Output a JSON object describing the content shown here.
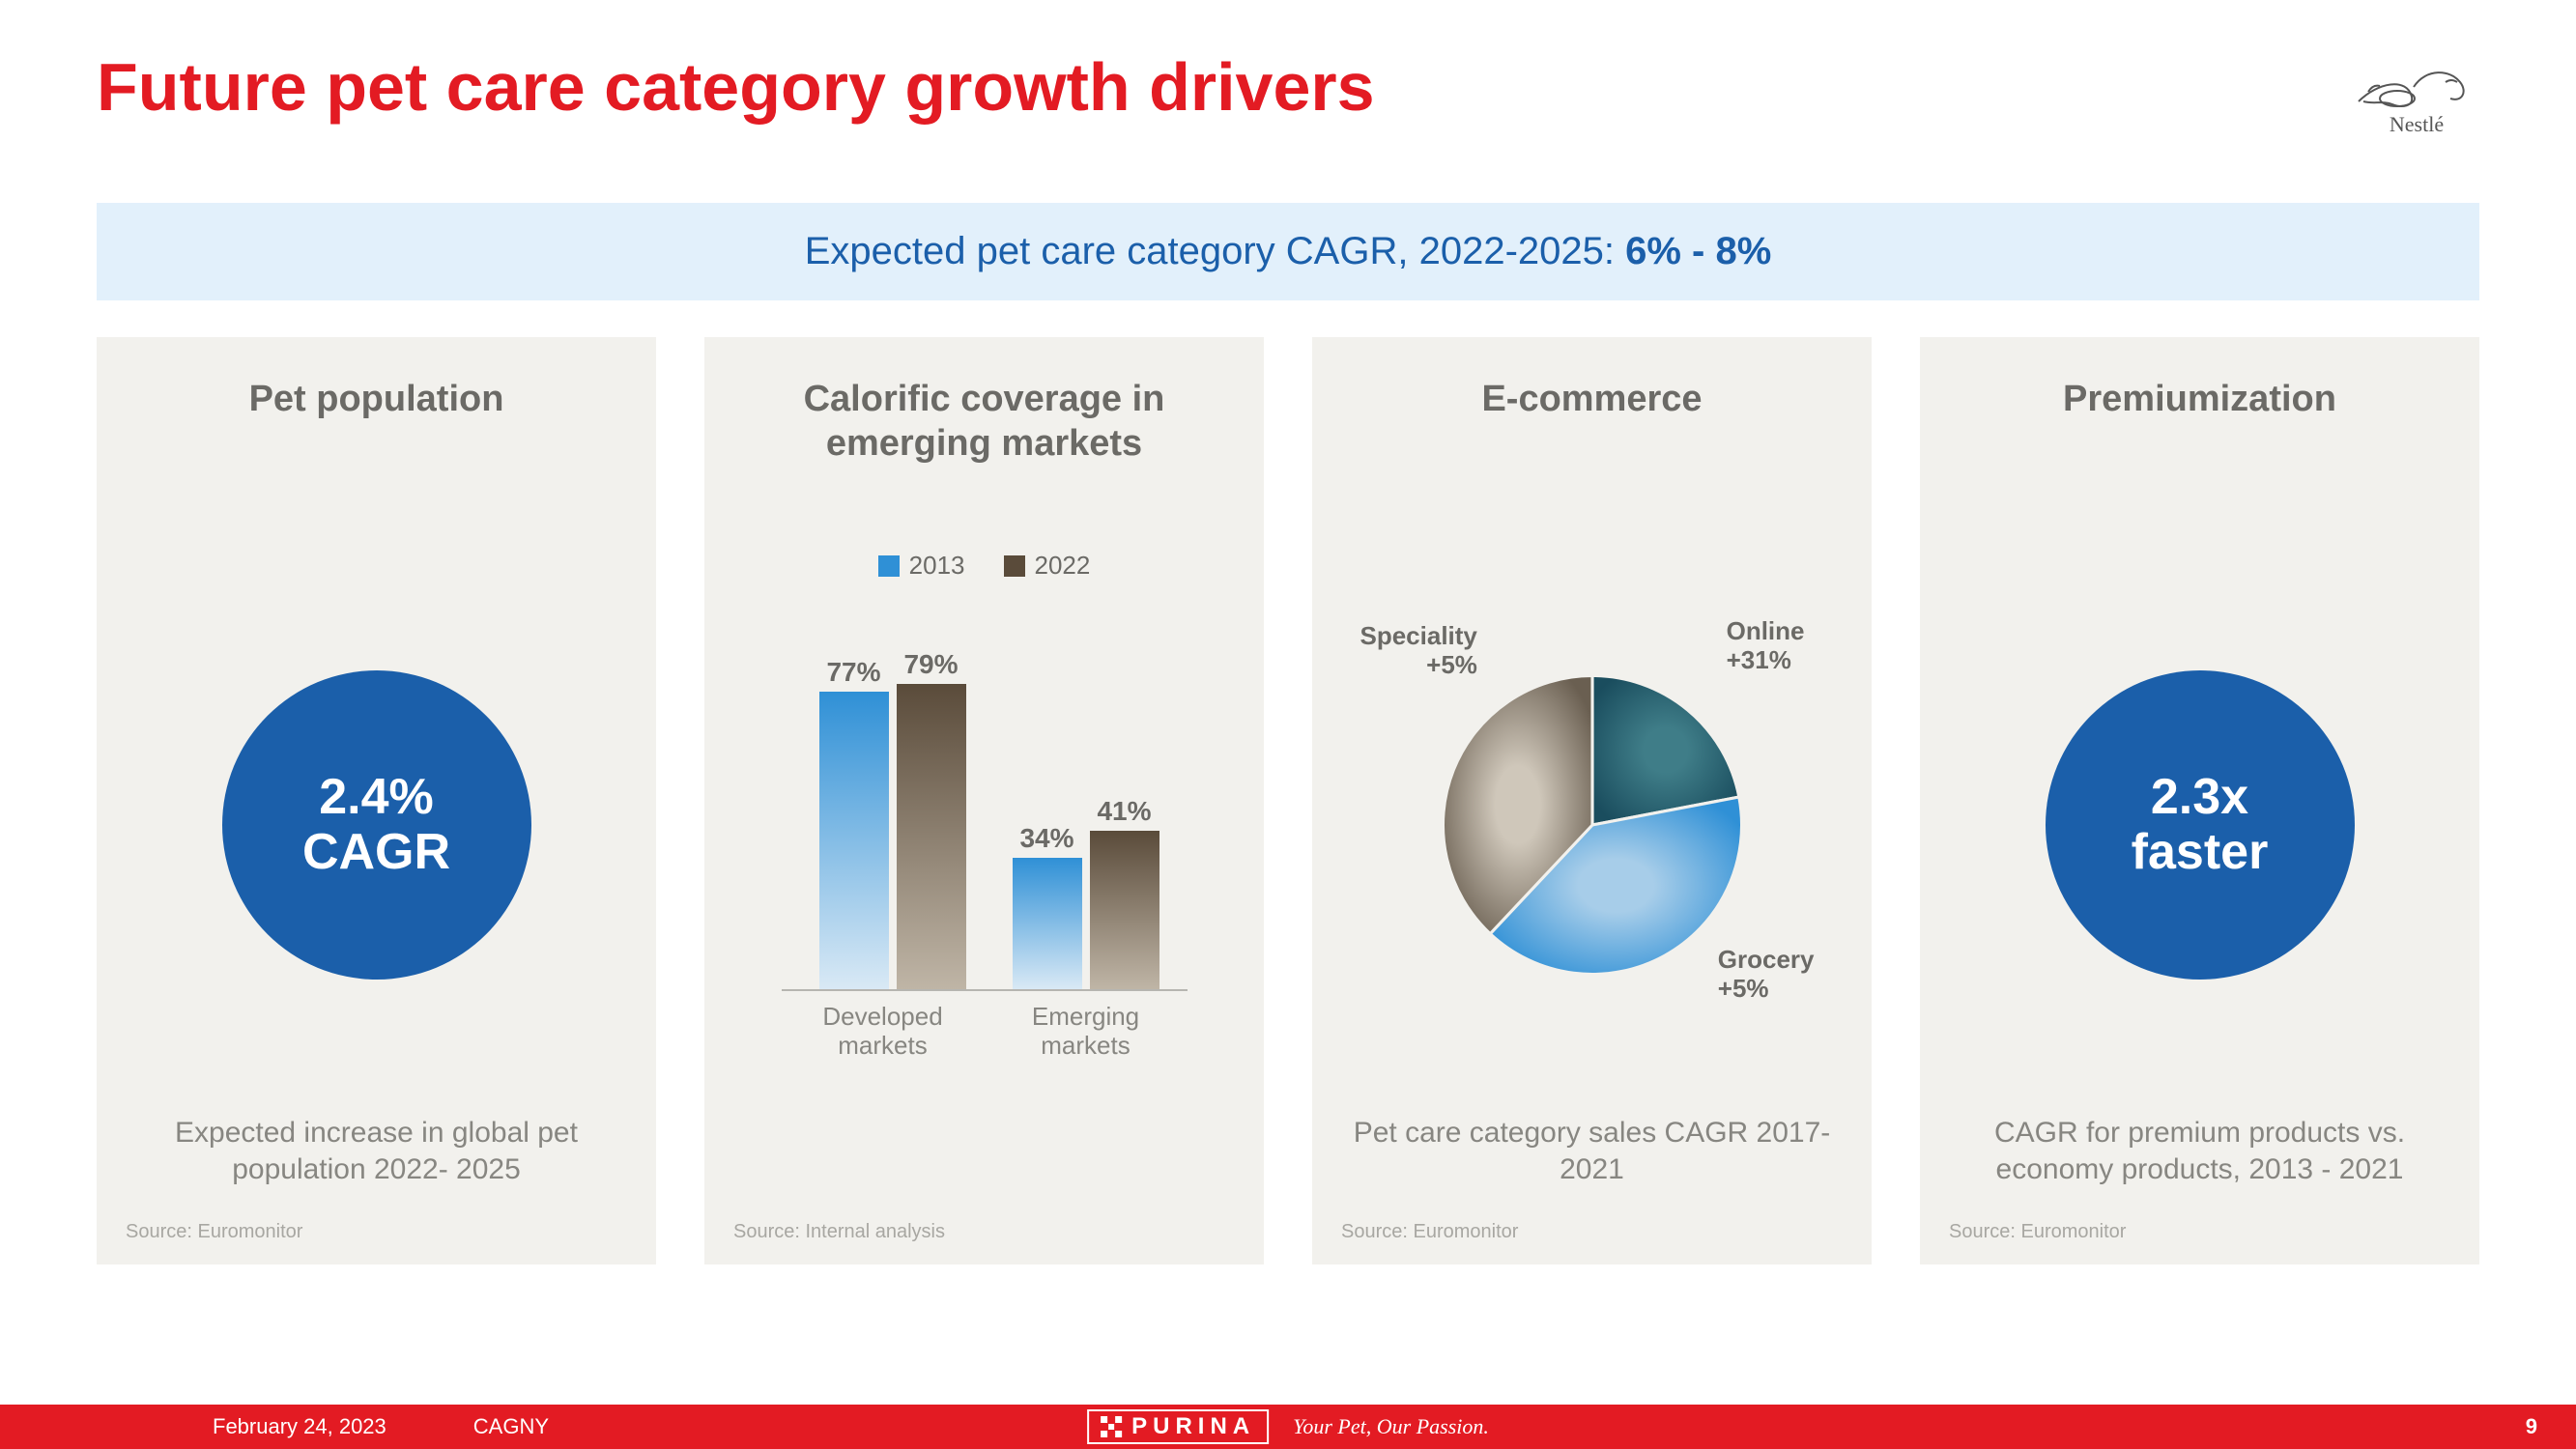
{
  "title": "Future pet care category growth drivers",
  "title_color": "#e31b23",
  "brand_name": "Nestlé",
  "banner": {
    "prefix": "Expected pet care category CAGR, 2022-2025: ",
    "bold": "6% - 8%",
    "bg_color": "#e2f0fb",
    "text_color": "#1b5faa"
  },
  "cards": {
    "card1": {
      "title": "Pet population",
      "circle_line1": "2.4%",
      "circle_line2": "CAGR",
      "circle_color": "#1b5faa",
      "caption": "Expected increase in global pet population 2022- 2025",
      "source": "Source: Euromonitor"
    },
    "card2": {
      "title": "Calorific coverage in emerging markets",
      "legend_2013": "2013",
      "legend_2022": "2022",
      "color_2013_top": "#2f90d6",
      "color_2013_bottom": "#d9e9f5",
      "color_2022_top": "#5a4b3a",
      "color_2022_bottom": "#bfb5a6",
      "axis_color": "#b6b5b0",
      "ylim_max": 100,
      "bars": {
        "developed": {
          "label": "Developed markets",
          "v2013": 77,
          "v2022": 79,
          "l2013": "77%",
          "l2022": "79%"
        },
        "emerging": {
          "label": "Emerging markets",
          "v2013": 34,
          "v2022": 41,
          "l2013": "34%",
          "l2022": "41%"
        }
      },
      "source": "Source: Internal analysis"
    },
    "card3": {
      "title": "E-commerce",
      "caption": "Pet care category sales CAGR 2017-2021",
      "source": "Source: Euromonitor",
      "pie": {
        "slices": {
          "online": {
            "name": "Online",
            "label": "+31%",
            "value": 22,
            "color_outer": "#1a4d5e",
            "color_inner": "#3f7d88"
          },
          "grocery": {
            "name": "Grocery",
            "label": "+5%",
            "value": 40,
            "color_outer": "#2f90d6",
            "color_inner": "#a7cde9"
          },
          "speciality": {
            "name": "Speciality",
            "label": "+5%",
            "value": 38,
            "color_outer": "#6a5f51",
            "color_inner": "#cfc7ba"
          }
        }
      }
    },
    "card4": {
      "title": "Premiumization",
      "circle_line1": "2.3x",
      "circle_line2": "faster",
      "circle_color": "#1b5faa",
      "caption": "CAGR for premium products vs. economy products, 2013 - 2021",
      "source": "Source: Euromonitor"
    }
  },
  "footer": {
    "date": "February 24, 2023",
    "event": "CAGNY",
    "brand": "PURINA",
    "tagline": "Your Pet, Our Passion.",
    "page": "9",
    "bg_color": "#e31b23"
  }
}
